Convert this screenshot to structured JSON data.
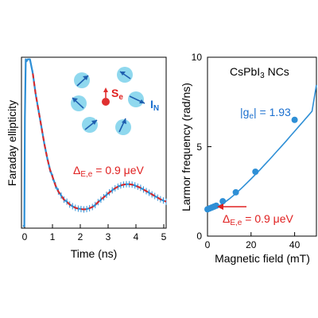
{
  "colors": {
    "trace": "#2e8fd6",
    "fit": "#e02828",
    "spin_circle": "#8fd8ee",
    "arrow": "#1f5fb0",
    "electron": "#e03030",
    "text_blue": "#1a6fcf",
    "text_red": "#e02020",
    "axis": "#000000"
  },
  "chart_data": [
    {
      "type": "line",
      "xlabel": "Time (ns)",
      "ylabel": "Faraday ellipticity",
      "xlim": [
        -0.1,
        5
      ],
      "ylim": [
        -1.2,
        3.0
      ],
      "xticks": [
        "0",
        "1",
        "2",
        "3",
        "4",
        "5"
      ],
      "yticks": [],
      "grid": false,
      "series": [
        {
          "name": "",
          "style": "measured",
          "x": [
            -0.05,
            0.0,
            0.02,
            0.05,
            0.08,
            0.12,
            0.2,
            0.3,
            0.4,
            0.5,
            0.6,
            0.7,
            0.8,
            0.9,
            1.0,
            1.1,
            1.2,
            1.3,
            1.4,
            1.5,
            1.6,
            1.7,
            1.8,
            1.9,
            2.0,
            2.1,
            2.2,
            2.3,
            2.4,
            2.5,
            2.6,
            2.7,
            2.8,
            2.9,
            3.0,
            3.1,
            3.2,
            3.3,
            3.4,
            3.5,
            3.6,
            3.7,
            3.8,
            3.9,
            4.0,
            4.1,
            4.2,
            4.3,
            4.4,
            4.5,
            4.6,
            4.7,
            4.8,
            4.9,
            5.0
          ],
          "y": [
            -1.15,
            -1.15,
            1.5,
            2.95,
            2.9,
            2.95,
            2.95,
            2.6,
            2.1,
            1.7,
            1.3,
            0.9,
            0.55,
            0.25,
            0.05,
            -0.15,
            -0.3,
            -0.4,
            -0.5,
            -0.55,
            -0.62,
            -0.66,
            -0.7,
            -0.72,
            -0.73,
            -0.74,
            -0.73,
            -0.71,
            -0.68,
            -0.63,
            -0.56,
            -0.5,
            -0.44,
            -0.38,
            -0.32,
            -0.27,
            -0.22,
            -0.18,
            -0.15,
            -0.13,
            -0.12,
            -0.12,
            -0.13,
            -0.15,
            -0.18,
            -0.21,
            -0.25,
            -0.29,
            -0.33,
            -0.37,
            -0.41,
            -0.45,
            -0.49,
            -0.52,
            -0.55
          ]
        },
        {
          "name": "",
          "style": "fit",
          "x": [
            0.3,
            0.4,
            0.5,
            0.6,
            0.7,
            0.8,
            0.9,
            1.0,
            1.1,
            1.2,
            1.3,
            1.4,
            1.5,
            1.6,
            1.7,
            1.8,
            1.9,
            2.0,
            2.1,
            2.2,
            2.3,
            2.4,
            2.5,
            2.6,
            2.7,
            2.8,
            2.9,
            3.0,
            3.1,
            3.2,
            3.3,
            3.4,
            3.5,
            3.6,
            3.7,
            3.8,
            3.9,
            4.0,
            4.1,
            4.2,
            4.3,
            4.4,
            4.5,
            4.6,
            4.7,
            4.8,
            4.9,
            5.0
          ],
          "y": [
            2.6,
            2.1,
            1.7,
            1.3,
            0.9,
            0.55,
            0.25,
            0.05,
            -0.15,
            -0.3,
            -0.4,
            -0.5,
            -0.55,
            -0.62,
            -0.66,
            -0.7,
            -0.72,
            -0.73,
            -0.74,
            -0.73,
            -0.71,
            -0.68,
            -0.63,
            -0.56,
            -0.5,
            -0.44,
            -0.38,
            -0.32,
            -0.27,
            -0.22,
            -0.18,
            -0.15,
            -0.13,
            -0.12,
            -0.12,
            -0.13,
            -0.15,
            -0.18,
            -0.21,
            -0.25,
            -0.29,
            -0.33,
            -0.37,
            -0.41,
            -0.45,
            -0.49,
            -0.52,
            -0.55
          ]
        }
      ],
      "annotations": {
        "spin_e": "S",
        "spin_e_sub": "e",
        "spin_n": "I",
        "spin_n_sub": "N",
        "splitting_prefix": "Δ",
        "splitting_sub": "E,e",
        "splitting_value": " = 0.9 μeV"
      }
    },
    {
      "type": "scatter",
      "xlabel": "Magnetic field (mT)",
      "ylabel": "Larmor frequency (rad/ns)",
      "xlim": [
        0,
        50
      ],
      "ylim": [
        0,
        10
      ],
      "xticks": [
        "0",
        "20",
        "40"
      ],
      "yticks": [
        "0",
        "5",
        "10"
      ],
      "grid": false,
      "title": "CsPbI",
      "title_sub": "3",
      "title_suffix": " NCs",
      "series": [
        {
          "name": "",
          "style": "points",
          "x": [
            0,
            1,
            2,
            3,
            4,
            7,
            13,
            22,
            40
          ],
          "y": [
            1.5,
            1.55,
            1.6,
            1.65,
            1.7,
            1.95,
            2.45,
            3.6,
            6.5
          ]
        },
        {
          "name": "",
          "style": "fit",
          "x": [
            0,
            1,
            2,
            3,
            4,
            5,
            6,
            7,
            8,
            10,
            12,
            14,
            16,
            18,
            20,
            22,
            24,
            26,
            28,
            30,
            32,
            34,
            36,
            38,
            40,
            42,
            44,
            46,
            48,
            50
          ],
          "y": [
            1.5,
            1.5,
            1.52,
            1.56,
            1.61,
            1.67,
            1.74,
            1.82,
            1.9,
            2.08,
            2.28,
            2.5,
            2.72,
            2.96,
            3.2,
            3.45,
            3.7,
            3.96,
            4.22,
            4.49,
            4.76,
            5.03,
            5.3,
            5.58,
            5.86,
            6.14,
            6.42,
            6.7,
            6.98,
            8.45
          ]
        }
      ],
      "annotations": {
        "g_label": "|g",
        "g_sub": "e",
        "g_value": "| = 1.93",
        "splitting_prefix": "Δ",
        "splitting_sub": "E,e",
        "splitting_value": " = 0.9 μeV"
      }
    }
  ]
}
